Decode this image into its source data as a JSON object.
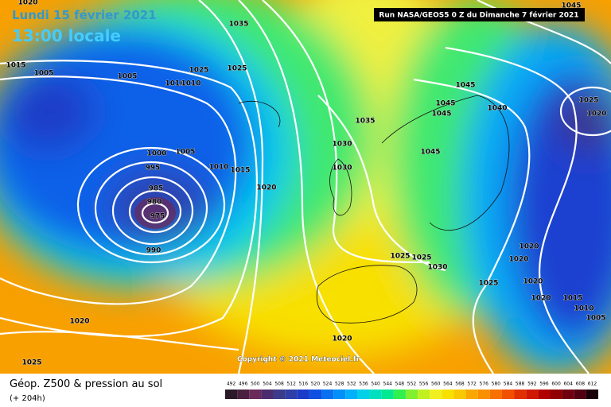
{
  "header": {
    "date": "Lundi 15 février 2021",
    "time": "13:00 locale",
    "run": "Run NASA/GEOS5 0 Z du Dimanche 7 février 2021"
  },
  "copyright": "Copyright © 2021 Meteociel.fr",
  "footer": {
    "title": "Géop. Z500 & pression au sol",
    "subtitle": "(+ 204h)"
  },
  "isobars": {
    "labels": [
      "1020",
      "1015",
      "1005",
      "1005",
      "1010",
      "1010",
      "1025",
      "1025",
      "1035",
      "1000",
      "1005",
      "995",
      "1010",
      "1015",
      "1020",
      "985",
      "980",
      "975",
      "990",
      "1035",
      "1030",
      "1030",
      "1045",
      "1045",
      "1045",
      "1040",
      "1045",
      "1045",
      "1025",
      "1020",
      "1020",
      "1020",
      "1020",
      "1020",
      "1025",
      "1025",
      "1030",
      "1025",
      "1015",
      "1010",
      "1005",
      "1020",
      "1020",
      "1025"
    ]
  },
  "legend": {
    "values": [
      492,
      496,
      500,
      504,
      508,
      512,
      516,
      520,
      524,
      528,
      532,
      536,
      540,
      544,
      548,
      552,
      556,
      560,
      564,
      568,
      572,
      576,
      580,
      584,
      588,
      592,
      596,
      600,
      604,
      608,
      612
    ],
    "colors": [
      "#2a1a2a",
      "#4a2040",
      "#6a2a5a",
      "#4b2c6e",
      "#3c3a8a",
      "#2e40a8",
      "#1a3cc8",
      "#1050e0",
      "#0a70f0",
      "#0090f8",
      "#00b0f8",
      "#00d0e8",
      "#00e0c0",
      "#00e890",
      "#30f050",
      "#80f030",
      "#c0f020",
      "#f0f020",
      "#f8e000",
      "#f8c800",
      "#f8a800",
      "#f89000",
      "#f87000",
      "#f05000",
      "#e03000",
      "#d01800",
      "#b00000",
      "#900000",
      "#700010",
      "#500010",
      "#1a0008"
    ]
  }
}
